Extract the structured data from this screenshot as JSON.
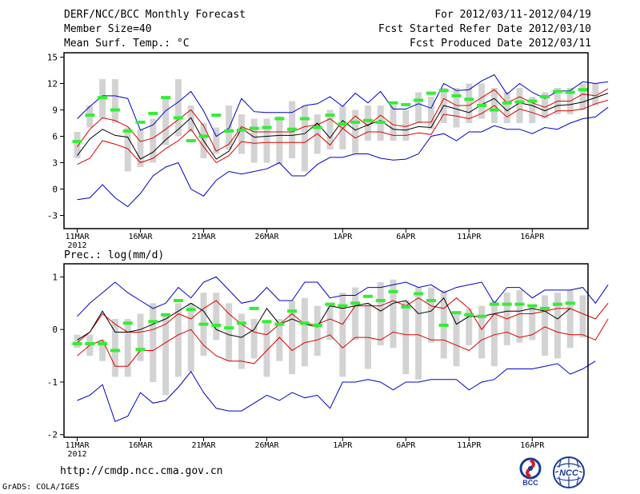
{
  "header": {
    "title": "DERF/NCC/BCC Monthly Forecast",
    "member_size": "Member Size=40",
    "variable": "Mean Surf. Temp.: °C",
    "period": "For 2012/03/11-2012/04/19",
    "started": "Fcst Started Refer Date 2012/03/10",
    "produced": "Fcst Produced Date 2012/03/11"
  },
  "footer": {
    "url": "http://cmdp.ncc.cma.gov.cn",
    "credit": "GrADS: COLA/IGES",
    "logo_bcc": "BCC",
    "logo_ncc": "NCC"
  },
  "colors": {
    "envelope": "#0000cc",
    "spread": "#dd0000",
    "mean": "#000000",
    "climate": "#33ee33",
    "box": "#d3d3d3"
  },
  "chart_data": [
    {
      "type": "line",
      "title": "Mean Surf. Temp.: °C",
      "x_ticks": [
        "11MAR",
        "16MAR",
        "21MAR",
        "26MAR",
        "1APR",
        "6APR",
        "11APR",
        "16APR"
      ],
      "x_tick_days": [
        0,
        5,
        10,
        15,
        21,
        26,
        31,
        36
      ],
      "x_sublabel": "2012",
      "ylim": [
        -4.5,
        15.5
      ],
      "y_ticks": [
        -3,
        0,
        3,
        6,
        9,
        12,
        15
      ],
      "y_tick_labels": [
        "-3",
        "0",
        "3",
        "6",
        "9",
        "12",
        "15"
      ],
      "series": [
        {
          "name": "max",
          "values": [
            8.0,
            9.4,
            10.6,
            10.6,
            10.3,
            6.7,
            7.3,
            8.9,
            9.9,
            11.1,
            8.9,
            6.0,
            6.9,
            10.3,
            8.8,
            8.7,
            8.7,
            8.7,
            9.5,
            9.7,
            10.5,
            9.4,
            10.9,
            9.8,
            11.1,
            9.1,
            9.1,
            9.7,
            9.2,
            12.0,
            11.2,
            11.3,
            12.3,
            13.0,
            10.8,
            12.0,
            11.0,
            10.3,
            11.1,
            11.2,
            12.2,
            12.0,
            12.2
          ]
        },
        {
          "name": "upper",
          "values": [
            4.8,
            6.8,
            8.1,
            7.8,
            7.1,
            5.4,
            5.8,
            6.8,
            7.9,
            9.0,
            7.2,
            4.3,
            5.1,
            7.1,
            6.5,
            6.5,
            6.5,
            6.5,
            7.1,
            7.3,
            8.0,
            6.9,
            8.3,
            7.2,
            8.4,
            7.3,
            7.1,
            7.6,
            7.6,
            10.3,
            9.5,
            9.5,
            10.4,
            11.3,
            9.8,
            10.5,
            9.8,
            9.3,
            10.0,
            10.0,
            10.8,
            10.6,
            11.4
          ]
        },
        {
          "name": "mean",
          "values": [
            3.8,
            5.7,
            6.8,
            6.1,
            5.9,
            3.4,
            4.2,
            5.6,
            6.8,
            8.1,
            5.5,
            3.4,
            4.3,
            6.9,
            5.9,
            6.0,
            6.1,
            6.1,
            6.3,
            7.5,
            5.8,
            7.8,
            6.7,
            7.3,
            7.8,
            6.8,
            6.7,
            7.1,
            7.0,
            9.5,
            9.1,
            8.7,
            9.6,
            10.3,
            8.9,
            9.8,
            9.5,
            8.9,
            9.5,
            9.6,
            9.9,
            10.4,
            10.9
          ]
        },
        {
          "name": "lower",
          "values": [
            2.8,
            3.5,
            5.5,
            5.1,
            4.6,
            3.0,
            3.5,
            4.6,
            5.5,
            6.8,
            4.8,
            3.0,
            3.8,
            5.4,
            5.2,
            5.3,
            5.3,
            5.3,
            5.3,
            6.3,
            5.0,
            6.9,
            5.8,
            6.5,
            6.5,
            6.1,
            6.1,
            6.4,
            6.2,
            8.5,
            8.3,
            8.0,
            8.6,
            9.5,
            8.2,
            9.1,
            8.7,
            8.2,
            8.9,
            8.9,
            9.1,
            9.7,
            10.1
          ]
        },
        {
          "name": "min",
          "values": [
            -1.2,
            -1.0,
            0.5,
            -1.0,
            -2.0,
            -0.5,
            1.5,
            2.5,
            3.0,
            0.0,
            -0.8,
            1.0,
            2.0,
            1.7,
            2.0,
            2.3,
            3.0,
            1.5,
            1.5,
            2.8,
            3.6,
            3.6,
            4.0,
            4.0,
            3.5,
            3.3,
            3.4,
            4.0,
            6.0,
            6.3,
            5.5,
            6.5,
            6.5,
            7.2,
            6.8,
            6.8,
            6.3,
            7.0,
            6.8,
            7.5,
            8.0,
            8.2,
            9.3
          ]
        },
        {
          "name": "climate",
          "values": [
            5.4,
            8.4,
            10.4,
            9.0,
            6.6,
            7.6,
            8.6,
            10.4,
            8.1,
            5.5,
            6.0,
            8.4,
            6.6,
            6.7,
            6.9,
            7.0,
            8.0,
            6.8,
            8.0,
            7.0,
            8.4,
            7.4,
            7.6,
            7.8,
            7.6,
            9.8,
            9.6,
            10.1,
            10.9,
            11.2,
            10.6,
            10.2,
            9.5,
            9.0,
            9.8,
            9.9,
            10.0,
            10.5,
            11.1,
            11.0,
            11.3
          ]
        }
      ],
      "box_ranges": [
        [
          3.5,
          6.5
        ],
        [
          7.0,
          9.5
        ],
        [
          8.0,
          12.5
        ],
        [
          7.5,
          12.5
        ],
        [
          2.0,
          7.0
        ],
        [
          2.5,
          6.8
        ],
        [
          3.0,
          8.0
        ],
        [
          5.0,
          10.5
        ],
        [
          6.0,
          12.5
        ],
        [
          6.5,
          9.5
        ],
        [
          3.5,
          7.5
        ],
        [
          4.0,
          7.0
        ],
        [
          4.5,
          9.5
        ],
        [
          4.0,
          8.5
        ],
        [
          3.0,
          8.0
        ],
        [
          3.0,
          8.0
        ],
        [
          2.8,
          8.3
        ],
        [
          3.5,
          10.0
        ],
        [
          2.0,
          9.5
        ],
        [
          4.0,
          8.5
        ],
        [
          4.5,
          9.0
        ],
        [
          4.5,
          9.5
        ],
        [
          4.0,
          9.0
        ],
        [
          5.5,
          9.5
        ],
        [
          5.5,
          9.5
        ],
        [
          5.5,
          9.5
        ],
        [
          5.5,
          9.0
        ],
        [
          7.5,
          11.0
        ],
        [
          6.8,
          10.5
        ],
        [
          7.5,
          11.5
        ],
        [
          7.0,
          11.5
        ],
        [
          7.5,
          12.0
        ],
        [
          8.0,
          12.0
        ],
        [
          7.5,
          11.5
        ],
        [
          7.5,
          11.0
        ],
        [
          7.5,
          11.5
        ],
        [
          7.5,
          10.5
        ],
        [
          8.0,
          11.0
        ],
        [
          8.5,
          11.5
        ],
        [
          8.5,
          11.5
        ],
        [
          9.0,
          12.0
        ],
        [
          9.5,
          12.0
        ]
      ]
    },
    {
      "type": "line",
      "title": "Prec.: log(mm/d)",
      "x_ticks": [
        "11MAR",
        "16MAR",
        "21MAR",
        "26MAR",
        "1APR",
        "6APR",
        "11APR",
        "16APR"
      ],
      "x_tick_days": [
        0,
        5,
        10,
        15,
        21,
        26,
        31,
        36
      ],
      "x_sublabel": "2012",
      "ylim": [
        -2.05,
        1.25
      ],
      "y_ticks": [
        -2,
        -1,
        0,
        1
      ],
      "y_tick_labels": [
        "-2",
        "-1",
        "0",
        "1"
      ],
      "series": [
        {
          "name": "max",
          "values": [
            0.25,
            0.5,
            0.7,
            0.9,
            0.7,
            0.55,
            0.4,
            0.5,
            0.8,
            0.6,
            0.9,
            1.0,
            0.75,
            0.5,
            0.55,
            0.8,
            0.55,
            0.55,
            0.9,
            0.9,
            0.6,
            0.65,
            0.65,
            0.8,
            0.8,
            0.85,
            0.9,
            0.8,
            0.85,
            0.7,
            0.8,
            0.85,
            0.9,
            0.5,
            0.8,
            0.8,
            0.6,
            0.75,
            0.75,
            0.75,
            0.8,
            0.5,
            0.85
          ]
        },
        {
          "name": "upper",
          "values": [
            -0.25,
            -0.05,
            0.3,
            0.1,
            -0.05,
            -0.05,
            0.0,
            0.1,
            0.3,
            0.2,
            0.4,
            0.55,
            0.3,
            0.1,
            -0.05,
            -0.1,
            0.1,
            0.3,
            0.1,
            0.1,
            0.2,
            0.1,
            0.45,
            0.45,
            0.45,
            0.55,
            0.45,
            0.6,
            0.45,
            0.4,
            0.6,
            0.4,
            0.0,
            0.3,
            0.2,
            0.3,
            0.3,
            0.35,
            0.4,
            0.4,
            0.3,
            0.2,
            0.5
          ]
        },
        {
          "name": "mean",
          "values": [
            -0.2,
            -0.05,
            0.35,
            -0.05,
            -0.05,
            0.0,
            0.1,
            0.2,
            0.35,
            0.5,
            0.35,
            0.0,
            -0.1,
            -0.15,
            0.0,
            0.4,
            0.1,
            0.2,
            0.1,
            0.05,
            0.45,
            0.4,
            0.45,
            0.5,
            0.35,
            0.5,
            0.55,
            0.3,
            0.35,
            0.6,
            0.1,
            0.25,
            0.25,
            0.3,
            0.35,
            0.35,
            0.4,
            0.35,
            0.2,
            0.4
          ]
        },
        {
          "name": "lower",
          "values": [
            -0.5,
            -0.3,
            -0.2,
            -0.7,
            -0.7,
            -0.4,
            -0.4,
            -0.25,
            -0.1,
            0.0,
            -0.3,
            -0.5,
            -0.6,
            -0.6,
            -0.65,
            -0.4,
            -0.15,
            -0.4,
            -0.25,
            -0.2,
            -0.1,
            -0.35,
            -0.15,
            -0.15,
            -0.2,
            -0.05,
            -0.1,
            -0.1,
            -0.2,
            -0.2,
            -0.3,
            -0.4,
            -0.2,
            -0.1,
            -0.05,
            -0.15,
            -0.1,
            0.05,
            -0.05,
            -0.1,
            -0.1,
            -0.2,
            0.2
          ]
        },
        {
          "name": "min",
          "values": [
            -1.35,
            -1.25,
            -1.05,
            -1.75,
            -1.65,
            -1.2,
            -1.4,
            -1.35,
            -1.1,
            -0.8,
            -1.2,
            -1.5,
            -1.55,
            -1.55,
            -1.4,
            -1.25,
            -1.35,
            -1.2,
            -1.3,
            -1.25,
            -1.5,
            -1.0,
            -1.0,
            -0.95,
            -1.0,
            -1.15,
            -1.0,
            -1.0,
            -0.95,
            -0.95,
            -0.95,
            -1.15,
            -1.0,
            -0.95,
            -0.75,
            -0.75,
            -0.75,
            -0.7,
            -0.65,
            -0.85,
            -0.75,
            -0.6
          ]
        },
        {
          "name": "climate",
          "values": [
            -0.27,
            -0.27,
            -0.27,
            -0.4,
            0.12,
            -0.38,
            0.15,
            0.28,
            0.55,
            0.38,
            0.1,
            0.08,
            0.03,
            0.12,
            0.4,
            0.15,
            0.1,
            0.35,
            0.12,
            0.08,
            0.48,
            0.45,
            0.5,
            0.63,
            0.55,
            0.72,
            0.43,
            0.68,
            0.55,
            0.08,
            0.32,
            0.28,
            0.25,
            0.48,
            0.48,
            0.48,
            0.45,
            0.4,
            0.48,
            0.5
          ]
        }
      ],
      "box_ranges": [
        [
          -0.35,
          -0.1
        ],
        [
          -0.5,
          -0.1
        ],
        [
          -0.6,
          -0.2
        ],
        [
          -0.9,
          0.2
        ],
        [
          -0.9,
          0.2
        ],
        [
          -0.6,
          0.3
        ],
        [
          -1.0,
          0.5
        ],
        [
          -1.25,
          0.3
        ],
        [
          -0.9,
          0.5
        ],
        [
          -0.8,
          0.5
        ],
        [
          -0.5,
          0.7
        ],
        [
          -0.2,
          0.7
        ],
        [
          -0.6,
          0.5
        ],
        [
          -0.75,
          0.3
        ],
        [
          -0.55,
          0.2
        ],
        [
          -0.9,
          0.15
        ],
        [
          -0.6,
          0.2
        ],
        [
          -0.85,
          0.55
        ],
        [
          -0.7,
          0.6
        ],
        [
          -0.5,
          0.45
        ],
        [
          -0.2,
          0.5
        ],
        [
          -0.9,
          0.7
        ],
        [
          -0.2,
          0.8
        ],
        [
          -0.75,
          0.5
        ],
        [
          -0.3,
          0.9
        ],
        [
          -0.35,
          0.95
        ],
        [
          -0.85,
          0.55
        ],
        [
          -0.95,
          0.8
        ],
        [
          -0.25,
          0.8
        ],
        [
          -0.55,
          0.75
        ],
        [
          -0.7,
          0.3
        ],
        [
          -0.3,
          0.4
        ],
        [
          -0.55,
          0.45
        ],
        [
          -0.7,
          0.55
        ],
        [
          -0.3,
          0.7
        ],
        [
          -0.25,
          0.75
        ],
        [
          -0.2,
          0.45
        ],
        [
          -0.5,
          0.65
        ],
        [
          -0.55,
          0.7
        ],
        [
          -0.35,
          0.75
        ],
        [
          -0.15,
          0.65
        ]
      ]
    }
  ]
}
